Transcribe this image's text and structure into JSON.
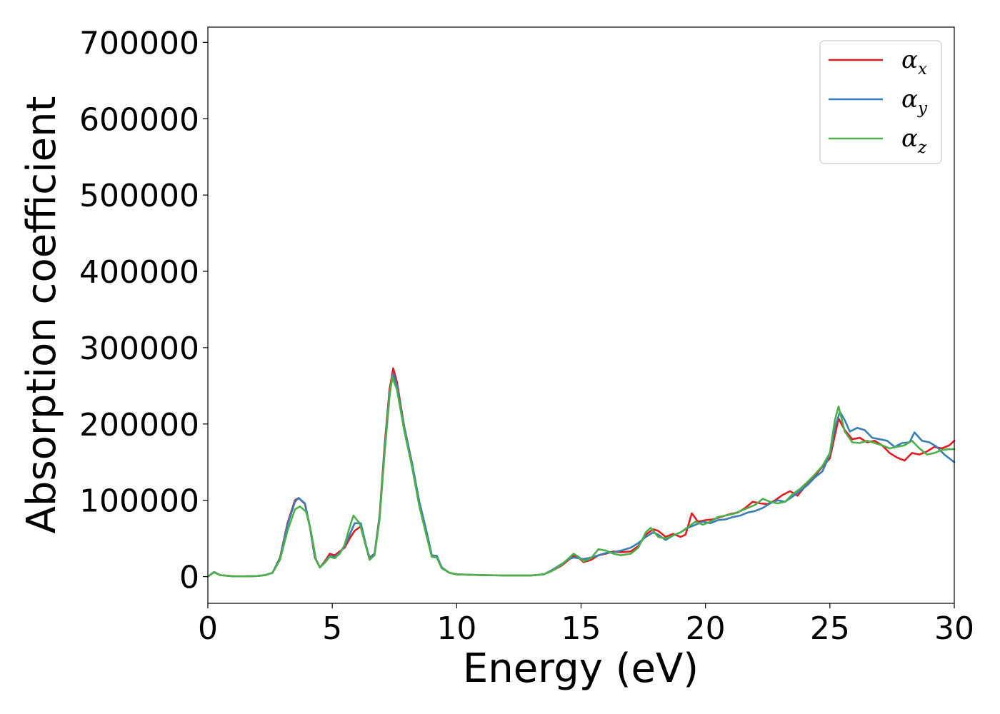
{
  "chart_data": {
    "type": "line",
    "title": "",
    "xlabel": "Energy (eV)",
    "ylabel": "Absorption coefficient",
    "xlim": [
      0,
      30
    ],
    "ylim": [
      -35000,
      720000
    ],
    "x_ticks": [
      "0",
      "5",
      "10",
      "15",
      "20",
      "25",
      "30"
    ],
    "y_ticks": [
      "0",
      "100000",
      "200000",
      "300000",
      "400000",
      "500000",
      "600000",
      "700000"
    ],
    "grid": false,
    "legend_position": "top-right",
    "series": [
      {
        "name": "α",
        "subscript": "x",
        "color": "#e41a1c",
        "points": [
          [
            0,
            0
          ],
          [
            0.25,
            6000
          ],
          [
            0.5,
            2000
          ],
          [
            1,
            500
          ],
          [
            1.5,
            400
          ],
          [
            2,
            800
          ],
          [
            2.3,
            2000
          ],
          [
            2.6,
            5000
          ],
          [
            2.9,
            25000
          ],
          [
            3.2,
            70000
          ],
          [
            3.5,
            100000
          ],
          [
            3.65,
            103000
          ],
          [
            3.9,
            95000
          ],
          [
            4.1,
            65000
          ],
          [
            4.3,
            25000
          ],
          [
            4.5,
            12000
          ],
          [
            4.7,
            20000
          ],
          [
            4.9,
            30000
          ],
          [
            5.1,
            28000
          ],
          [
            5.3,
            33000
          ],
          [
            5.5,
            38000
          ],
          [
            5.7,
            50000
          ],
          [
            5.9,
            60000
          ],
          [
            6.15,
            66000
          ],
          [
            6.35,
            40000
          ],
          [
            6.5,
            25000
          ],
          [
            6.7,
            30000
          ],
          [
            6.9,
            80000
          ],
          [
            7.1,
            170000
          ],
          [
            7.3,
            245000
          ],
          [
            7.45,
            273000
          ],
          [
            7.6,
            255000
          ],
          [
            7.9,
            195000
          ],
          [
            8.2,
            150000
          ],
          [
            8.5,
            95000
          ],
          [
            8.8,
            55000
          ],
          [
            9,
            28000
          ],
          [
            9.2,
            27000
          ],
          [
            9.4,
            12000
          ],
          [
            9.7,
            5000
          ],
          [
            10,
            3000
          ],
          [
            11,
            2000
          ],
          [
            12,
            1500
          ],
          [
            13,
            1500
          ],
          [
            13.5,
            3000
          ],
          [
            13.8,
            7000
          ],
          [
            14.2,
            14000
          ],
          [
            14.5,
            22000
          ],
          [
            14.7,
            27000
          ],
          [
            14.9,
            25000
          ],
          [
            15.1,
            19000
          ],
          [
            15.4,
            22000
          ],
          [
            15.7,
            28000
          ],
          [
            16,
            30000
          ],
          [
            16.3,
            33000
          ],
          [
            16.6,
            32000
          ],
          [
            17,
            33000
          ],
          [
            17.3,
            40000
          ],
          [
            17.6,
            55000
          ],
          [
            17.9,
            62000
          ],
          [
            18.1,
            60000
          ],
          [
            18.4,
            52000
          ],
          [
            18.7,
            56000
          ],
          [
            19,
            52000
          ],
          [
            19.2,
            55000
          ],
          [
            19.45,
            83000
          ],
          [
            19.7,
            72000
          ],
          [
            20,
            74000
          ],
          [
            20.3,
            75000
          ],
          [
            20.6,
            78000
          ],
          [
            21,
            82000
          ],
          [
            21.3,
            84000
          ],
          [
            21.6,
            90000
          ],
          [
            21.9,
            98000
          ],
          [
            22.2,
            96000
          ],
          [
            22.5,
            95000
          ],
          [
            22.8,
            100000
          ],
          [
            23.1,
            107000
          ],
          [
            23.4,
            112000
          ],
          [
            23.7,
            106000
          ],
          [
            24,
            118000
          ],
          [
            24.3,
            128000
          ],
          [
            24.6,
            140000
          ],
          [
            25,
            155000
          ],
          [
            25.2,
            185000
          ],
          [
            25.35,
            207000
          ],
          [
            25.6,
            192000
          ],
          [
            25.9,
            180000
          ],
          [
            26.2,
            182000
          ],
          [
            26.5,
            176000
          ],
          [
            26.8,
            178000
          ],
          [
            27.1,
            172000
          ],
          [
            27.4,
            162000
          ],
          [
            27.7,
            156000
          ],
          [
            28,
            152000
          ],
          [
            28.3,
            162000
          ],
          [
            28.6,
            160000
          ],
          [
            28.9,
            164000
          ],
          [
            29.2,
            170000
          ],
          [
            29.5,
            168000
          ],
          [
            29.8,
            172000
          ],
          [
            30,
            178000
          ]
        ]
      },
      {
        "name": "α",
        "subscript": "y",
        "color": "#377eb8",
        "points": [
          [
            0,
            0
          ],
          [
            0.25,
            6000
          ],
          [
            0.5,
            2000
          ],
          [
            1,
            500
          ],
          [
            1.5,
            400
          ],
          [
            2,
            800
          ],
          [
            2.3,
            2000
          ],
          [
            2.6,
            5000
          ],
          [
            2.9,
            24000
          ],
          [
            3.2,
            68000
          ],
          [
            3.5,
            98000
          ],
          [
            3.65,
            103000
          ],
          [
            3.9,
            96000
          ],
          [
            4.1,
            66000
          ],
          [
            4.3,
            26000
          ],
          [
            4.5,
            12000
          ],
          [
            4.7,
            19000
          ],
          [
            4.9,
            27000
          ],
          [
            5.1,
            26000
          ],
          [
            5.3,
            31000
          ],
          [
            5.5,
            40000
          ],
          [
            5.7,
            55000
          ],
          [
            5.9,
            70000
          ],
          [
            6.15,
            70000
          ],
          [
            6.35,
            42000
          ],
          [
            6.5,
            24000
          ],
          [
            6.7,
            30000
          ],
          [
            6.9,
            78000
          ],
          [
            7.1,
            165000
          ],
          [
            7.3,
            240000
          ],
          [
            7.45,
            266000
          ],
          [
            7.6,
            250000
          ],
          [
            7.9,
            195000
          ],
          [
            8.2,
            150000
          ],
          [
            8.5,
            98000
          ],
          [
            8.8,
            58000
          ],
          [
            9,
            28000
          ],
          [
            9.2,
            27000
          ],
          [
            9.4,
            12000
          ],
          [
            9.7,
            5000
          ],
          [
            10,
            3000
          ],
          [
            11,
            2000
          ],
          [
            12,
            1500
          ],
          [
            13,
            1500
          ],
          [
            13.5,
            3000
          ],
          [
            13.8,
            8000
          ],
          [
            14.2,
            16000
          ],
          [
            14.5,
            23000
          ],
          [
            14.7,
            25000
          ],
          [
            14.9,
            24000
          ],
          [
            15.1,
            23000
          ],
          [
            15.4,
            25000
          ],
          [
            15.7,
            28000
          ],
          [
            16,
            31000
          ],
          [
            16.3,
            32000
          ],
          [
            16.6,
            34000
          ],
          [
            17,
            38000
          ],
          [
            17.3,
            44000
          ],
          [
            17.6,
            52000
          ],
          [
            17.9,
            58000
          ],
          [
            18.1,
            55000
          ],
          [
            18.4,
            48000
          ],
          [
            18.7,
            54000
          ],
          [
            19,
            58000
          ],
          [
            19.3,
            64000
          ],
          [
            19.6,
            68000
          ],
          [
            19.9,
            72000
          ],
          [
            20.2,
            70000
          ],
          [
            20.5,
            74000
          ],
          [
            20.8,
            75000
          ],
          [
            21.1,
            78000
          ],
          [
            21.4,
            80000
          ],
          [
            21.7,
            84000
          ],
          [
            22,
            86000
          ],
          [
            22.3,
            90000
          ],
          [
            22.6,
            96000
          ],
          [
            22.9,
            100000
          ],
          [
            23.2,
            98000
          ],
          [
            23.5,
            105000
          ],
          [
            23.8,
            112000
          ],
          [
            24.1,
            120000
          ],
          [
            24.4,
            130000
          ],
          [
            24.7,
            138000
          ],
          [
            25,
            160000
          ],
          [
            25.2,
            195000
          ],
          [
            25.4,
            216000
          ],
          [
            25.6,
            205000
          ],
          [
            25.8,
            190000
          ],
          [
            26.1,
            195000
          ],
          [
            26.4,
            192000
          ],
          [
            26.7,
            182000
          ],
          [
            27,
            180000
          ],
          [
            27.3,
            178000
          ],
          [
            27.6,
            170000
          ],
          [
            27.9,
            175000
          ],
          [
            28.2,
            176000
          ],
          [
            28.4,
            189000
          ],
          [
            28.7,
            178000
          ],
          [
            29,
            176000
          ],
          [
            29.3,
            170000
          ],
          [
            29.6,
            160000
          ],
          [
            30,
            150000
          ]
        ]
      },
      {
        "name": "α",
        "subscript": "z",
        "color": "#4daf4a",
        "points": [
          [
            0,
            0
          ],
          [
            0.25,
            5500
          ],
          [
            0.5,
            2000
          ],
          [
            1,
            500
          ],
          [
            1.5,
            400
          ],
          [
            2,
            800
          ],
          [
            2.3,
            2000
          ],
          [
            2.6,
            5000
          ],
          [
            2.9,
            22000
          ],
          [
            3.2,
            60000
          ],
          [
            3.5,
            88000
          ],
          [
            3.7,
            92000
          ],
          [
            3.95,
            85000
          ],
          [
            4.15,
            58000
          ],
          [
            4.35,
            22000
          ],
          [
            4.5,
            12000
          ],
          [
            4.7,
            18000
          ],
          [
            4.9,
            26000
          ],
          [
            5.1,
            24000
          ],
          [
            5.3,
            30000
          ],
          [
            5.5,
            42000
          ],
          [
            5.7,
            65000
          ],
          [
            5.85,
            80000
          ],
          [
            6.1,
            70000
          ],
          [
            6.35,
            40000
          ],
          [
            6.5,
            22000
          ],
          [
            6.7,
            28000
          ],
          [
            6.9,
            75000
          ],
          [
            7.1,
            160000
          ],
          [
            7.3,
            235000
          ],
          [
            7.4,
            262000
          ],
          [
            7.6,
            245000
          ],
          [
            7.9,
            190000
          ],
          [
            8.2,
            145000
          ],
          [
            8.5,
            92000
          ],
          [
            8.8,
            52000
          ],
          [
            9,
            26000
          ],
          [
            9.2,
            25000
          ],
          [
            9.4,
            11000
          ],
          [
            9.7,
            5000
          ],
          [
            10,
            3000
          ],
          [
            11,
            2000
          ],
          [
            12,
            1500
          ],
          [
            13,
            1500
          ],
          [
            13.5,
            3000
          ],
          [
            13.8,
            7000
          ],
          [
            14.2,
            15000
          ],
          [
            14.5,
            24000
          ],
          [
            14.7,
            30000
          ],
          [
            14.9,
            26000
          ],
          [
            15.1,
            20000
          ],
          [
            15.4,
            24000
          ],
          [
            15.7,
            36000
          ],
          [
            16,
            34000
          ],
          [
            16.3,
            30000
          ],
          [
            16.6,
            28000
          ],
          [
            17,
            30000
          ],
          [
            17.3,
            38000
          ],
          [
            17.6,
            58000
          ],
          [
            17.8,
            64000
          ],
          [
            18.1,
            52000
          ],
          [
            18.4,
            50000
          ],
          [
            18.7,
            54000
          ],
          [
            19,
            58000
          ],
          [
            19.3,
            65000
          ],
          [
            19.6,
            72000
          ],
          [
            19.9,
            68000
          ],
          [
            20.2,
            72000
          ],
          [
            20.5,
            78000
          ],
          [
            20.8,
            80000
          ],
          [
            21.1,
            82000
          ],
          [
            21.4,
            86000
          ],
          [
            21.7,
            90000
          ],
          [
            22,
            94000
          ],
          [
            22.3,
            102000
          ],
          [
            22.6,
            98000
          ],
          [
            22.9,
            96000
          ],
          [
            23.2,
            98000
          ],
          [
            23.5,
            108000
          ],
          [
            23.8,
            115000
          ],
          [
            24.1,
            124000
          ],
          [
            24.4,
            134000
          ],
          [
            24.7,
            145000
          ],
          [
            25,
            162000
          ],
          [
            25.2,
            205000
          ],
          [
            25.35,
            223000
          ],
          [
            25.6,
            190000
          ],
          [
            25.9,
            176000
          ],
          [
            26.2,
            175000
          ],
          [
            26.5,
            178000
          ],
          [
            26.8,
            175000
          ],
          [
            27.1,
            172000
          ],
          [
            27.4,
            168000
          ],
          [
            27.7,
            170000
          ],
          [
            28,
            172000
          ],
          [
            28.3,
            178000
          ],
          [
            28.6,
            168000
          ],
          [
            28.9,
            160000
          ],
          [
            29.2,
            162000
          ],
          [
            29.5,
            166000
          ],
          [
            29.8,
            167000
          ],
          [
            30,
            167000
          ]
        ]
      }
    ]
  }
}
